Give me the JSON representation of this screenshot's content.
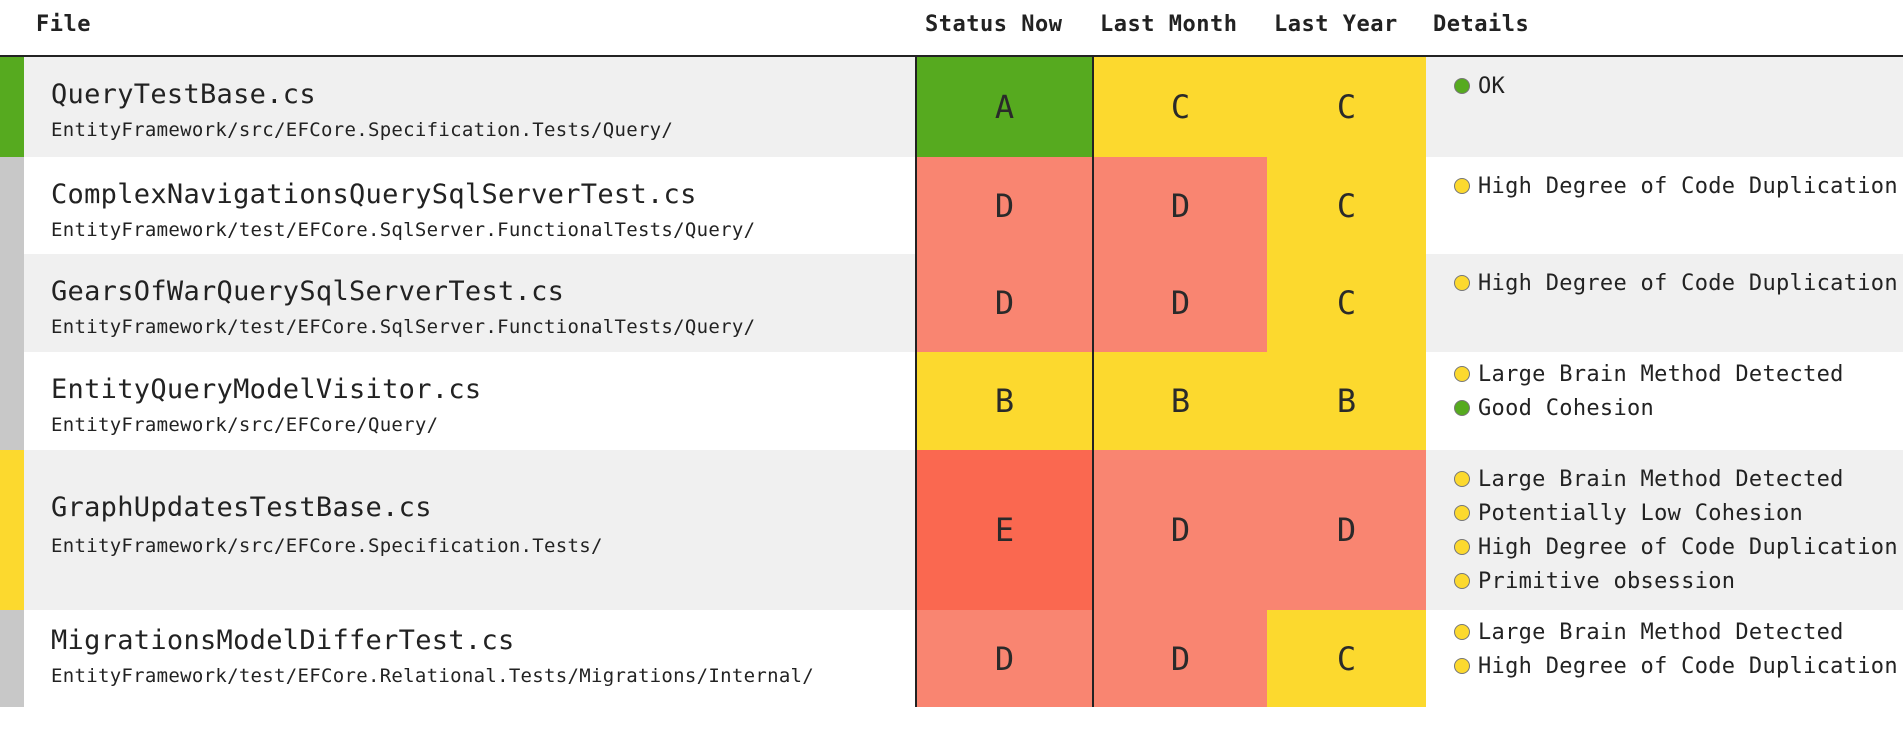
{
  "colors": {
    "A": "#56aa1f",
    "B": "#fcd92e",
    "C": "#fcd92e",
    "D": "#f98571",
    "E": "#fa6850",
    "ok": "#56aa1f",
    "warn": "#fcd92e",
    "neutral": "#c8c8c8"
  },
  "header": {
    "file": "File",
    "status_now": "Status Now",
    "last_month": "Last Month",
    "last_year": "Last Year",
    "details": "Details"
  },
  "rows": [
    {
      "name": "QueryTestBase.cs",
      "path": "EntityFramework/src/EFCore.Specification.Tests/Query/",
      "status_now": "A",
      "last_month": "C",
      "last_year": "C",
      "stripe": "ok",
      "details": [
        {
          "text": "OK",
          "level": "ok"
        }
      ]
    },
    {
      "name": "ComplexNavigationsQuerySqlServerTest.cs",
      "path": "EntityFramework/test/EFCore.SqlServer.FunctionalTests/Query/",
      "status_now": "D",
      "last_month": "D",
      "last_year": "C",
      "stripe": "neutral",
      "details": [
        {
          "text": "High Degree of Code Duplication",
          "level": "warn"
        }
      ]
    },
    {
      "name": "GearsOfWarQuerySqlServerTest.cs",
      "path": "EntityFramework/test/EFCore.SqlServer.FunctionalTests/Query/",
      "status_now": "D",
      "last_month": "D",
      "last_year": "C",
      "stripe": "neutral",
      "details": [
        {
          "text": "High Degree of Code Duplication",
          "level": "warn"
        }
      ]
    },
    {
      "name": "EntityQueryModelVisitor.cs",
      "path": "EntityFramework/src/EFCore/Query/",
      "status_now": "B",
      "last_month": "B",
      "last_year": "B",
      "stripe": "neutral",
      "details": [
        {
          "text": "Large Brain Method Detected",
          "level": "warn"
        },
        {
          "text": "Good Cohesion",
          "level": "ok"
        }
      ]
    },
    {
      "name": "GraphUpdatesTestBase.cs",
      "path": "EntityFramework/src/EFCore.Specification.Tests/",
      "status_now": "E",
      "last_month": "D",
      "last_year": "D",
      "stripe": "warn",
      "details": [
        {
          "text": "Large Brain Method Detected",
          "level": "warn"
        },
        {
          "text": "Potentially Low Cohesion",
          "level": "warn"
        },
        {
          "text": "High Degree of Code Duplication",
          "level": "warn"
        },
        {
          "text": "Primitive obsession",
          "level": "warn"
        }
      ]
    },
    {
      "name": "MigrationsModelDifferTest.cs",
      "path": "EntityFramework/test/EFCore.Relational.Tests/Migrations/Internal/",
      "status_now": "D",
      "last_month": "D",
      "last_year": "C",
      "stripe": "neutral",
      "details": [
        {
          "text": "Large Brain Method Detected",
          "level": "warn"
        },
        {
          "text": "High Degree of Code Duplication",
          "level": "warn"
        }
      ]
    }
  ]
}
